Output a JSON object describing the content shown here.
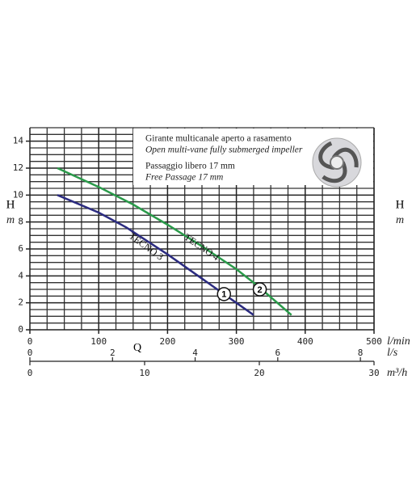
{
  "chart_data": {
    "type": "line",
    "y_label": "H",
    "y_unit": "m",
    "x_label": "Q",
    "x_unit": "l/min",
    "xlim": [
      0,
      500
    ],
    "xticks": [
      0,
      100,
      200,
      300,
      400,
      500
    ],
    "ylim": [
      0,
      15
    ],
    "yticks": [
      0,
      2,
      4,
      6,
      8,
      10,
      12,
      14
    ],
    "grid": true,
    "secondary_x_axes": [
      {
        "unit": "l/s",
        "lim": [
          0,
          8.33
        ],
        "ticks": [
          0,
          2,
          4,
          6,
          8
        ]
      },
      {
        "unit": "m³/h",
        "lim": [
          0,
          30
        ],
        "ticks": [
          0,
          10,
          20,
          30
        ]
      }
    ],
    "info": [
      "Girante multicanale aperto a rasamento",
      "Open multi-vane fully submerged impeller",
      "Passaggio libero 17 mm",
      "Free Passage 17 mm"
    ],
    "series": [
      {
        "name": "TECNO 3",
        "marker": "1",
        "color": "#2b2b80",
        "x": [
          40,
          100,
          140,
          200,
          250,
          300,
          325
        ],
        "values": [
          10,
          8.7,
          7.6,
          5.6,
          3.8,
          2.0,
          1.1
        ]
      },
      {
        "name": "TECNO 4",
        "marker": "2",
        "color": "#2a9a4a",
        "x": [
          40,
          100,
          150,
          200,
          250,
          300,
          330,
          380
        ],
        "values": [
          12,
          10.6,
          9.3,
          7.8,
          6.2,
          4.5,
          3.3,
          1.1
        ]
      }
    ]
  }
}
